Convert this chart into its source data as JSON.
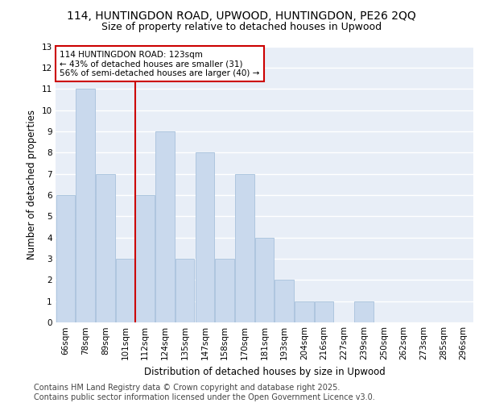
{
  "title_line1": "114, HUNTINGDON ROAD, UPWOOD, HUNTINGDON, PE26 2QQ",
  "title_line2": "Size of property relative to detached houses in Upwood",
  "xlabel": "Distribution of detached houses by size in Upwood",
  "ylabel": "Number of detached properties",
  "categories": [
    "66sqm",
    "78sqm",
    "89sqm",
    "101sqm",
    "112sqm",
    "124sqm",
    "135sqm",
    "147sqm",
    "158sqm",
    "170sqm",
    "181sqm",
    "193sqm",
    "204sqm",
    "216sqm",
    "227sqm",
    "239sqm",
    "250sqm",
    "262sqm",
    "273sqm",
    "285sqm",
    "296sqm"
  ],
  "values": [
    6,
    11,
    7,
    3,
    6,
    9,
    3,
    8,
    3,
    7,
    4,
    2,
    1,
    1,
    0,
    1,
    0,
    0,
    0,
    0,
    0
  ],
  "bar_color": "#c9d9ed",
  "bar_edge_color": "#aec6df",
  "highlight_index": 4,
  "annotation_text": "114 HUNTINGDON ROAD: 123sqm\n← 43% of detached houses are smaller (31)\n56% of semi-detached houses are larger (40) →",
  "annotation_box_color": "#ffffff",
  "annotation_box_edge": "#cc0000",
  "vline_color": "#cc0000",
  "ylim": [
    0,
    13
  ],
  "yticks": [
    0,
    1,
    2,
    3,
    4,
    5,
    6,
    7,
    8,
    9,
    10,
    11,
    12,
    13
  ],
  "background_color": "#e8eef7",
  "grid_color": "#ffffff",
  "footer_line1": "Contains HM Land Registry data © Crown copyright and database right 2025.",
  "footer_line2": "Contains public sector information licensed under the Open Government Licence v3.0.",
  "title_fontsize": 10,
  "subtitle_fontsize": 9,
  "axis_label_fontsize": 8.5,
  "tick_fontsize": 7.5,
  "footer_fontsize": 7
}
